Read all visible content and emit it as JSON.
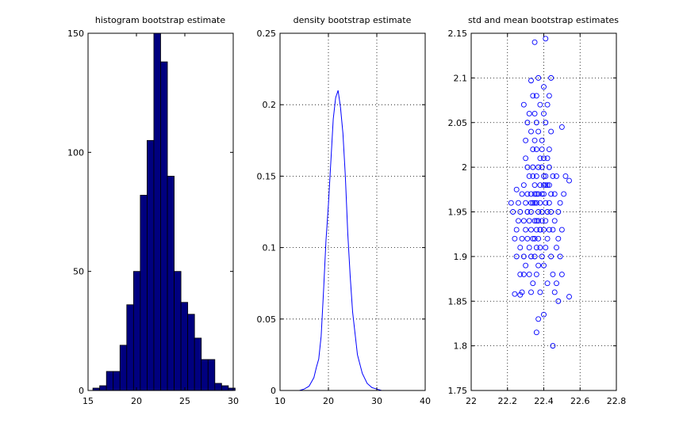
{
  "chart_data": [
    {
      "type": "bar",
      "title": "histogram bootstrap estimate",
      "xlim": [
        15,
        30
      ],
      "ylim": [
        0,
        150
      ],
      "xticks": [
        15,
        20,
        25,
        30
      ],
      "yticks": [
        0,
        50,
        100,
        150
      ],
      "grid": false,
      "color": "#00007F",
      "bins": [
        {
          "x0": 15.5,
          "x1": 16.2,
          "count": 1
        },
        {
          "x0": 16.2,
          "x1": 16.9,
          "count": 2
        },
        {
          "x0": 16.9,
          "x1": 17.6,
          "count": 8
        },
        {
          "x0": 17.6,
          "x1": 18.3,
          "count": 8
        },
        {
          "x0": 18.3,
          "x1": 19.0,
          "count": 19
        },
        {
          "x0": 19.0,
          "x1": 19.7,
          "count": 36
        },
        {
          "x0": 19.7,
          "x1": 20.4,
          "count": 50
        },
        {
          "x0": 20.4,
          "x1": 21.1,
          "count": 82
        },
        {
          "x0": 21.1,
          "x1": 21.8,
          "count": 105
        },
        {
          "x0": 21.8,
          "x1": 22.5,
          "count": 150
        },
        {
          "x0": 22.5,
          "x1": 23.2,
          "count": 138
        },
        {
          "x0": 23.2,
          "x1": 23.9,
          "count": 90
        },
        {
          "x0": 23.9,
          "x1": 24.6,
          "count": 50
        },
        {
          "x0": 24.6,
          "x1": 25.3,
          "count": 37
        },
        {
          "x0": 25.3,
          "x1": 26.0,
          "count": 32
        },
        {
          "x0": 26.0,
          "x1": 26.7,
          "count": 22
        },
        {
          "x0": 26.7,
          "x1": 27.4,
          "count": 13
        },
        {
          "x0": 27.4,
          "x1": 28.1,
          "count": 13
        },
        {
          "x0": 28.1,
          "x1": 28.8,
          "count": 3
        },
        {
          "x0": 28.8,
          "x1": 29.5,
          "count": 2
        },
        {
          "x0": 29.5,
          "x1": 30.2,
          "count": 1
        }
      ]
    },
    {
      "type": "line",
      "title": "density bootstrap estimate",
      "xlim": [
        10,
        40
      ],
      "ylim": [
        0,
        0.25
      ],
      "xticks": [
        10,
        20,
        30,
        40
      ],
      "yticks": [
        0,
        0.05,
        0.1,
        0.15,
        0.2,
        0.25
      ],
      "grid": true,
      "color": "#0000FF",
      "x": [
        14,
        15,
        16,
        17,
        17.5,
        18,
        18.5,
        19,
        19.5,
        20,
        20.5,
        21,
        21.5,
        22,
        22.5,
        23,
        23.5,
        24,
        24.5,
        25,
        25.5,
        26,
        27,
        28,
        29,
        30,
        31
      ],
      "y": [
        0,
        0.001,
        0.003,
        0.009,
        0.016,
        0.022,
        0.038,
        0.07,
        0.105,
        0.13,
        0.16,
        0.19,
        0.205,
        0.21,
        0.198,
        0.18,
        0.15,
        0.11,
        0.08,
        0.055,
        0.04,
        0.025,
        0.012,
        0.005,
        0.002,
        0.001,
        0
      ]
    },
    {
      "type": "scatter",
      "title": "std and mean bootstrap estimates",
      "xlim": [
        22,
        22.8
      ],
      "ylim": [
        1.75,
        2.15
      ],
      "xticks": [
        22,
        22.2,
        22.4,
        22.6,
        22.8
      ],
      "yticks": [
        1.75,
        1.8,
        1.85,
        1.9,
        1.95,
        2,
        2.05,
        2.1,
        2.15
      ],
      "grid": true,
      "color": "#0000FF",
      "points": [
        [
          22.35,
          2.14
        ],
        [
          22.41,
          2.144
        ],
        [
          22.37,
          2.1
        ],
        [
          22.33,
          2.097
        ],
        [
          22.44,
          2.1
        ],
        [
          22.45,
          1.8
        ],
        [
          22.36,
          1.815
        ],
        [
          22.37,
          1.83
        ],
        [
          22.4,
          1.835
        ],
        [
          22.48,
          1.85
        ],
        [
          22.54,
          1.855
        ],
        [
          22.33,
          1.86
        ],
        [
          22.27,
          1.857
        ],
        [
          22.24,
          1.858
        ],
        [
          22.22,
          1.96
        ],
        [
          22.25,
          1.975
        ],
        [
          22.29,
          2.07
        ],
        [
          22.31,
          2.05
        ],
        [
          22.43,
          2.08
        ],
        [
          22.5,
          2.045
        ],
        [
          22.52,
          1.99
        ],
        [
          22.54,
          1.985
        ],
        [
          22.5,
          1.88
        ],
        [
          22.29,
          1.88
        ],
        [
          22.38,
          1.93
        ],
        [
          22.35,
          1.96
        ],
        [
          22.4,
          1.97
        ],
        [
          22.32,
          1.94
        ],
        [
          22.42,
          1.95
        ],
        [
          22.36,
          1.99
        ],
        [
          22.39,
          2.0
        ],
        [
          22.34,
          1.92
        ],
        [
          22.37,
          1.95
        ],
        [
          22.41,
          1.98
        ],
        [
          22.33,
          1.97
        ],
        [
          22.38,
          1.91
        ],
        [
          22.36,
          2.02
        ],
        [
          22.4,
          1.93
        ],
        [
          22.35,
          1.9
        ],
        [
          22.43,
          1.96
        ],
        [
          22.31,
          1.95
        ],
        [
          22.37,
          1.97
        ],
        [
          22.39,
          1.94
        ],
        [
          22.34,
          1.99
        ],
        [
          22.42,
          1.92
        ],
        [
          22.36,
          1.93
        ],
        [
          22.38,
          2.01
        ],
        [
          22.4,
          1.99
        ],
        [
          22.33,
          1.93
        ],
        [
          22.35,
          2.03
        ],
        [
          22.41,
          1.94
        ],
        [
          22.37,
          1.92
        ],
        [
          22.3,
          1.96
        ],
        [
          22.44,
          1.95
        ],
        [
          22.36,
          1.96
        ],
        [
          22.39,
          1.97
        ],
        [
          22.32,
          1.91
        ],
        [
          22.43,
          2.0
        ],
        [
          22.35,
          1.94
        ],
        [
          22.38,
          1.96
        ],
        [
          22.29,
          1.98
        ],
        [
          22.45,
          1.93
        ],
        [
          22.28,
          1.92
        ],
        [
          22.46,
          1.97
        ],
        [
          22.27,
          1.95
        ],
        [
          22.47,
          1.99
        ],
        [
          22.26,
          1.94
        ],
        [
          22.48,
          1.92
        ],
        [
          22.25,
          1.93
        ],
        [
          22.49,
          1.96
        ],
        [
          22.3,
          1.89
        ],
        [
          22.44,
          1.9
        ],
        [
          22.32,
          1.88
        ],
        [
          22.42,
          1.87
        ],
        [
          22.34,
          1.87
        ],
        [
          22.4,
          1.89
        ],
        [
          22.36,
          1.88
        ],
        [
          22.38,
          1.86
        ],
        [
          22.31,
          2.0
        ],
        [
          22.43,
          2.02
        ],
        [
          22.33,
          2.04
        ],
        [
          22.41,
          2.05
        ],
        [
          22.35,
          2.06
        ],
        [
          22.39,
          2.03
        ],
        [
          22.37,
          2.04
        ],
        [
          22.34,
          2.02
        ],
        [
          22.4,
          2.06
        ],
        [
          22.36,
          2.08
        ],
        [
          22.42,
          2.01
        ],
        [
          22.3,
          2.01
        ],
        [
          22.28,
          1.97
        ],
        [
          22.46,
          1.94
        ],
        [
          22.27,
          1.91
        ],
        [
          22.47,
          1.91
        ],
        [
          22.29,
          1.9
        ],
        [
          22.45,
          1.88
        ],
        [
          22.31,
          1.92
        ],
        [
          22.43,
          1.93
        ],
        [
          22.33,
          1.95
        ],
        [
          22.41,
          1.96
        ],
        [
          22.35,
          1.98
        ],
        [
          22.39,
          1.9
        ],
        [
          22.37,
          1.89
        ],
        [
          22.36,
          1.91
        ],
        [
          22.38,
          1.98
        ],
        [
          22.32,
          1.99
        ],
        [
          22.42,
          1.98
        ],
        [
          22.34,
          2.0
        ],
        [
          22.4,
          2.01
        ],
        [
          22.3,
          1.93
        ],
        [
          22.44,
          1.97
        ],
        [
          22.26,
          1.96
        ],
        [
          22.48,
          1.95
        ],
        [
          22.24,
          1.92
        ],
        [
          22.5,
          1.93
        ],
        [
          22.23,
          1.95
        ],
        [
          22.51,
          1.97
        ],
        [
          22.25,
          1.9
        ],
        [
          22.49,
          1.9
        ],
        [
          22.27,
          1.88
        ],
        [
          22.47,
          1.87
        ],
        [
          22.28,
          1.86
        ],
        [
          22.46,
          1.86
        ],
        [
          22.3,
          2.03
        ],
        [
          22.44,
          2.04
        ],
        [
          22.32,
          2.06
        ],
        [
          22.42,
          2.07
        ],
        [
          22.34,
          2.08
        ],
        [
          22.4,
          2.09
        ],
        [
          22.36,
          2.05
        ],
        [
          22.38,
          2.07
        ],
        [
          22.33,
          1.96
        ],
        [
          22.41,
          1.99
        ],
        [
          22.35,
          1.97
        ],
        [
          22.39,
          1.95
        ],
        [
          22.37,
          1.94
        ],
        [
          22.36,
          1.97
        ],
        [
          22.38,
          1.93
        ],
        [
          22.34,
          1.96
        ],
        [
          22.4,
          1.98
        ],
        [
          22.29,
          1.94
        ],
        [
          22.45,
          1.99
        ],
        [
          22.31,
          1.97
        ],
        [
          22.43,
          1.98
        ],
        [
          22.33,
          1.9
        ],
        [
          22.41,
          1.91
        ],
        [
          22.35,
          1.92
        ],
        [
          22.39,
          2.02
        ],
        [
          22.37,
          2.0
        ],
        [
          22.36,
          1.94
        ]
      ]
    }
  ]
}
